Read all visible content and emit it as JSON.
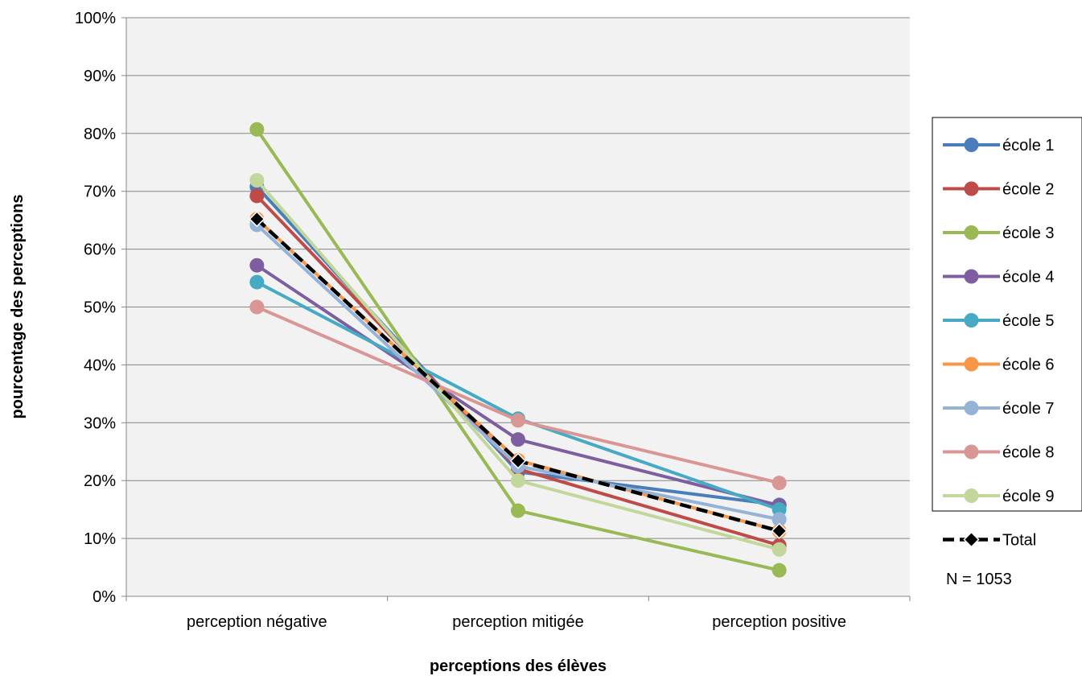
{
  "chart_data": {
    "type": "line",
    "title": "",
    "xlabel": "perceptions des élèves",
    "ylabel": "pourcentage des perceptions",
    "categories": [
      "perception négative",
      "perception mitigée",
      "perception positive"
    ],
    "ylim": [
      0,
      100
    ],
    "y_ticks": [
      "0%",
      "10%",
      "20%",
      "30%",
      "40%",
      "50%",
      "60%",
      "70%",
      "80%",
      "90%",
      "100%"
    ],
    "grid": true,
    "legend_position": "right",
    "note": "N = 1053",
    "series": [
      {
        "name": "école 1",
        "color": "#4A7EBB",
        "marker": "circle",
        "dashed": false,
        "values": [
          70.8,
          21.5,
          15.8
        ]
      },
      {
        "name": "école 2",
        "color": "#BE4B48",
        "marker": "circle",
        "dashed": false,
        "values": [
          69.2,
          22.0,
          8.8
        ]
      },
      {
        "name": "école 3",
        "color": "#98B954",
        "marker": "circle",
        "dashed": false,
        "values": [
          80.7,
          14.8,
          4.5
        ]
      },
      {
        "name": "école 4",
        "color": "#7D5FA0",
        "marker": "circle",
        "dashed": false,
        "values": [
          57.2,
          27.1,
          15.7
        ]
      },
      {
        "name": "école 5",
        "color": "#46AAC5",
        "marker": "circle",
        "dashed": false,
        "values": [
          54.3,
          30.7,
          15.0
        ]
      },
      {
        "name": "école 6",
        "color": "#F79646",
        "marker": "circle",
        "dashed": false,
        "values": [
          65.2,
          23.5,
          11.3
        ]
      },
      {
        "name": "école 7",
        "color": "#95B3D7",
        "marker": "circle",
        "dashed": false,
        "values": [
          64.2,
          22.5,
          13.3
        ]
      },
      {
        "name": "école 8",
        "color": "#D99694",
        "marker": "circle",
        "dashed": false,
        "values": [
          50.0,
          30.4,
          19.6
        ]
      },
      {
        "name": "école 9",
        "color": "#C3D69B",
        "marker": "circle",
        "dashed": false,
        "values": [
          71.9,
          20.0,
          8.1
        ]
      },
      {
        "name": "Total",
        "color": "#000000",
        "marker": "diamond",
        "dashed": true,
        "values": [
          65.2,
          23.4,
          11.3
        ]
      }
    ]
  }
}
